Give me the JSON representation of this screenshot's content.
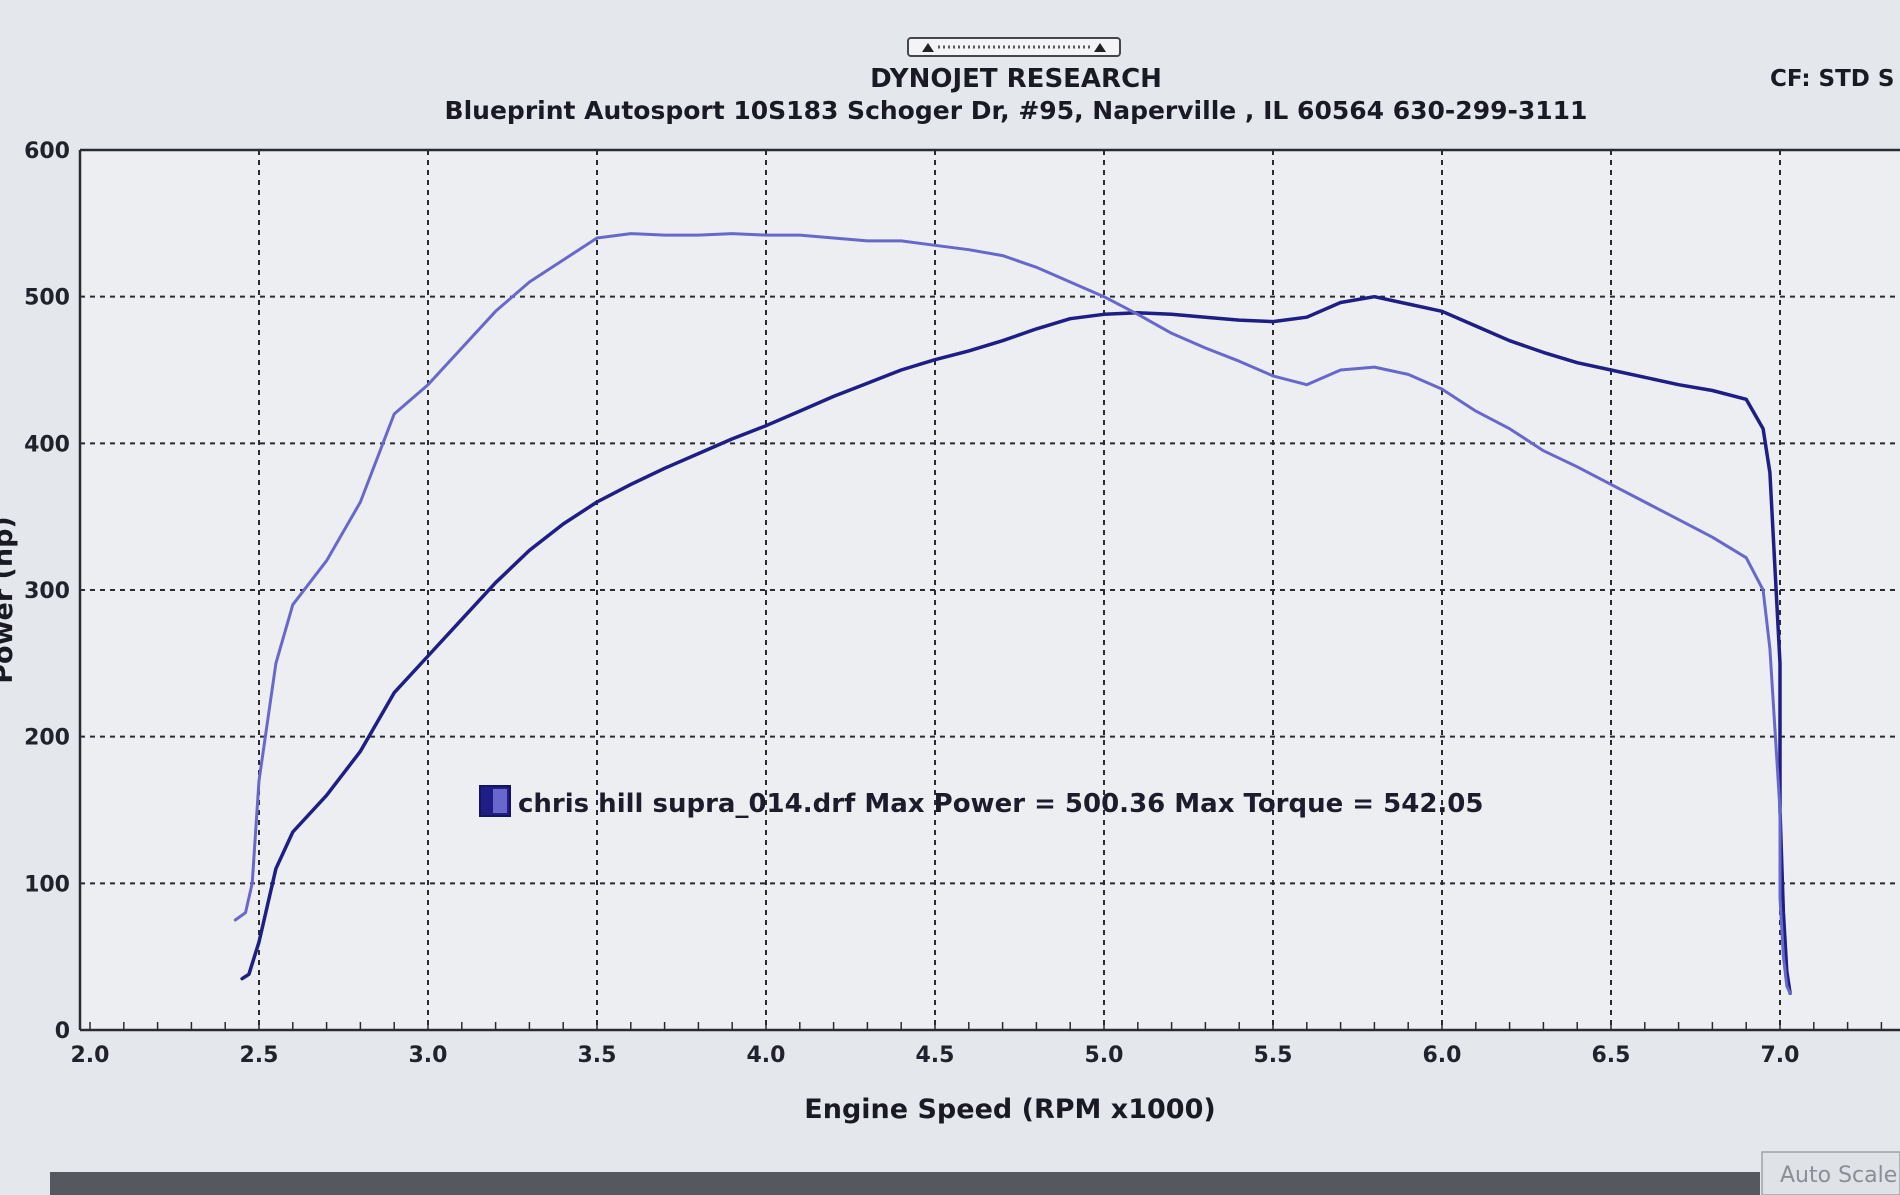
{
  "header": {
    "title": "DYNOJET RESEARCH",
    "subtitle": "Blueprint Autosport 10S183 Schoger Dr, #95, Naperville , IL 60564  630-299-3111",
    "cf_label": "CF: STD  S"
  },
  "footer": {
    "auto_scale_label": "Auto Scale"
  },
  "colors": {
    "power": "#1e1e86",
    "torque": "#6868cc",
    "background": "#e4e8ec",
    "plot_background": "#eceef1"
  },
  "chart_data": {
    "type": "line",
    "title": "DYNOJET RESEARCH",
    "xlabel": "Engine Speed (RPM x1000)",
    "ylabel": "Power (hp)",
    "xlim": [
      2.0,
      7.3
    ],
    "ylim": [
      0,
      600
    ],
    "x_ticks": [
      "2.0",
      "2.5",
      "3.0",
      "3.5",
      "4.0",
      "4.5",
      "5.0",
      "5.5",
      "6.0",
      "6.5",
      "7.0"
    ],
    "y_ticks": [
      "0",
      "100",
      "200",
      "300",
      "400",
      "500",
      "600"
    ],
    "grid": true,
    "legend": {
      "position": "center",
      "text": "chris hill supra_014.drf Max Power = 500.36 Max Torque = 542.05"
    },
    "series": [
      {
        "role": "power",
        "x": [
          2.45,
          2.47,
          2.5,
          2.55,
          2.6,
          2.7,
          2.8,
          2.9,
          3.0,
          3.1,
          3.2,
          3.3,
          3.4,
          3.5,
          3.6,
          3.7,
          3.8,
          3.9,
          4.0,
          4.1,
          4.2,
          4.3,
          4.4,
          4.5,
          4.6,
          4.7,
          4.8,
          4.9,
          5.0,
          5.1,
          5.2,
          5.3,
          5.4,
          5.5,
          5.6,
          5.7,
          5.8,
          5.9,
          6.0,
          6.1,
          6.2,
          6.3,
          6.4,
          6.5,
          6.6,
          6.7,
          6.8,
          6.9,
          6.95,
          6.97,
          7.0,
          7.0,
          7.01,
          7.02,
          7.03
        ],
        "y": [
          35,
          38,
          60,
          110,
          135,
          160,
          190,
          230,
          255,
          280,
          305,
          327,
          345,
          360,
          372,
          383,
          393,
          403,
          412,
          422,
          432,
          441,
          450,
          457,
          463,
          470,
          478,
          485,
          488,
          489,
          488,
          486,
          484,
          483,
          486,
          496,
          500,
          495,
          490,
          480,
          470,
          462,
          455,
          450,
          445,
          440,
          436,
          430,
          410,
          380,
          250,
          150,
          80,
          40,
          25
        ]
      },
      {
        "role": "torque",
        "x": [
          2.43,
          2.46,
          2.48,
          2.5,
          2.55,
          2.6,
          2.7,
          2.8,
          2.9,
          3.0,
          3.1,
          3.2,
          3.3,
          3.4,
          3.5,
          3.6,
          3.7,
          3.8,
          3.9,
          4.0,
          4.1,
          4.2,
          4.3,
          4.4,
          4.5,
          4.6,
          4.7,
          4.8,
          4.9,
          5.0,
          5.1,
          5.2,
          5.3,
          5.4,
          5.5,
          5.6,
          5.7,
          5.8,
          5.9,
          6.0,
          6.1,
          6.2,
          6.3,
          6.4,
          6.5,
          6.6,
          6.7,
          6.8,
          6.9,
          6.95,
          6.97,
          7.0,
          7.0,
          7.01,
          7.02,
          7.03
        ],
        "y": [
          75,
          80,
          100,
          170,
          250,
          290,
          320,
          360,
          420,
          440,
          465,
          490,
          510,
          525,
          540,
          543,
          542,
          542,
          543,
          542,
          542,
          540,
          538,
          538,
          535,
          532,
          528,
          520,
          510,
          500,
          488,
          475,
          465,
          456,
          446,
          440,
          450,
          452,
          447,
          437,
          422,
          410,
          395,
          384,
          372,
          360,
          348,
          336,
          322,
          300,
          260,
          150,
          90,
          50,
          30,
          25
        ]
      }
    ]
  }
}
